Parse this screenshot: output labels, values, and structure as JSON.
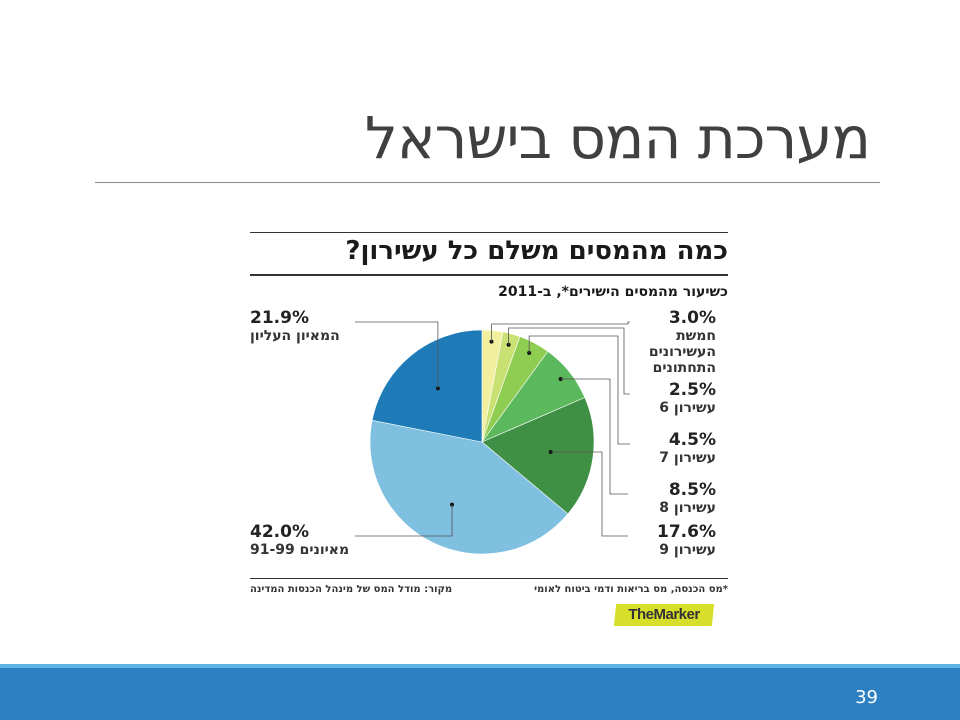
{
  "slide": {
    "title": "מערכת המס בישראל",
    "page_number": "39"
  },
  "chart_data": {
    "type": "pie",
    "title": "כמה מהמסים משלם כל עשירון?",
    "subtitle": "כשיעור מהמסים הישירים*, ב-2011",
    "slices": [
      {
        "value": 3.0,
        "pct_label": "3.0%",
        "label": "חמשת העשירונים התחתונים",
        "label_lines": [
          "חמשת",
          "העשירונים",
          "התחתונים"
        ],
        "color": "#f2ef9f"
      },
      {
        "value": 2.5,
        "pct_label": "2.5%",
        "label": "עשירון 6",
        "label_lines": [
          "עשירון 6"
        ],
        "color": "#c9e072"
      },
      {
        "value": 4.5,
        "pct_label": "4.5%",
        "label": "עשירון 7",
        "label_lines": [
          "עשירון 7"
        ],
        "color": "#8fcc52"
      },
      {
        "value": 8.5,
        "pct_label": "8.5%",
        "label": "עשירון 8",
        "label_lines": [
          "עשירון 8"
        ],
        "color": "#5cb85c"
      },
      {
        "value": 17.6,
        "pct_label": "17.6%",
        "label": "עשירון 9",
        "label_lines": [
          "עשירון 9"
        ],
        "color": "#3f8f45"
      },
      {
        "value": 42.0,
        "pct_label": "42.0%",
        "label": "מאיונים 91-99",
        "label_lines": [
          "מאיונים 91-99"
        ],
        "color": "#7fbfe0"
      },
      {
        "value": 21.9,
        "pct_label": "21.9%",
        "label": "המאיון העליון",
        "label_lines": [
          "המאיון העליון"
        ],
        "color": "#1f7bb8"
      }
    ],
    "footnote": "*מס הכנסה, מס בריאות ודמי ביטוח לאומי",
    "source": "מקור: מודל המס של מינהל הכנסות המדינה",
    "brand": "TheMarker"
  }
}
